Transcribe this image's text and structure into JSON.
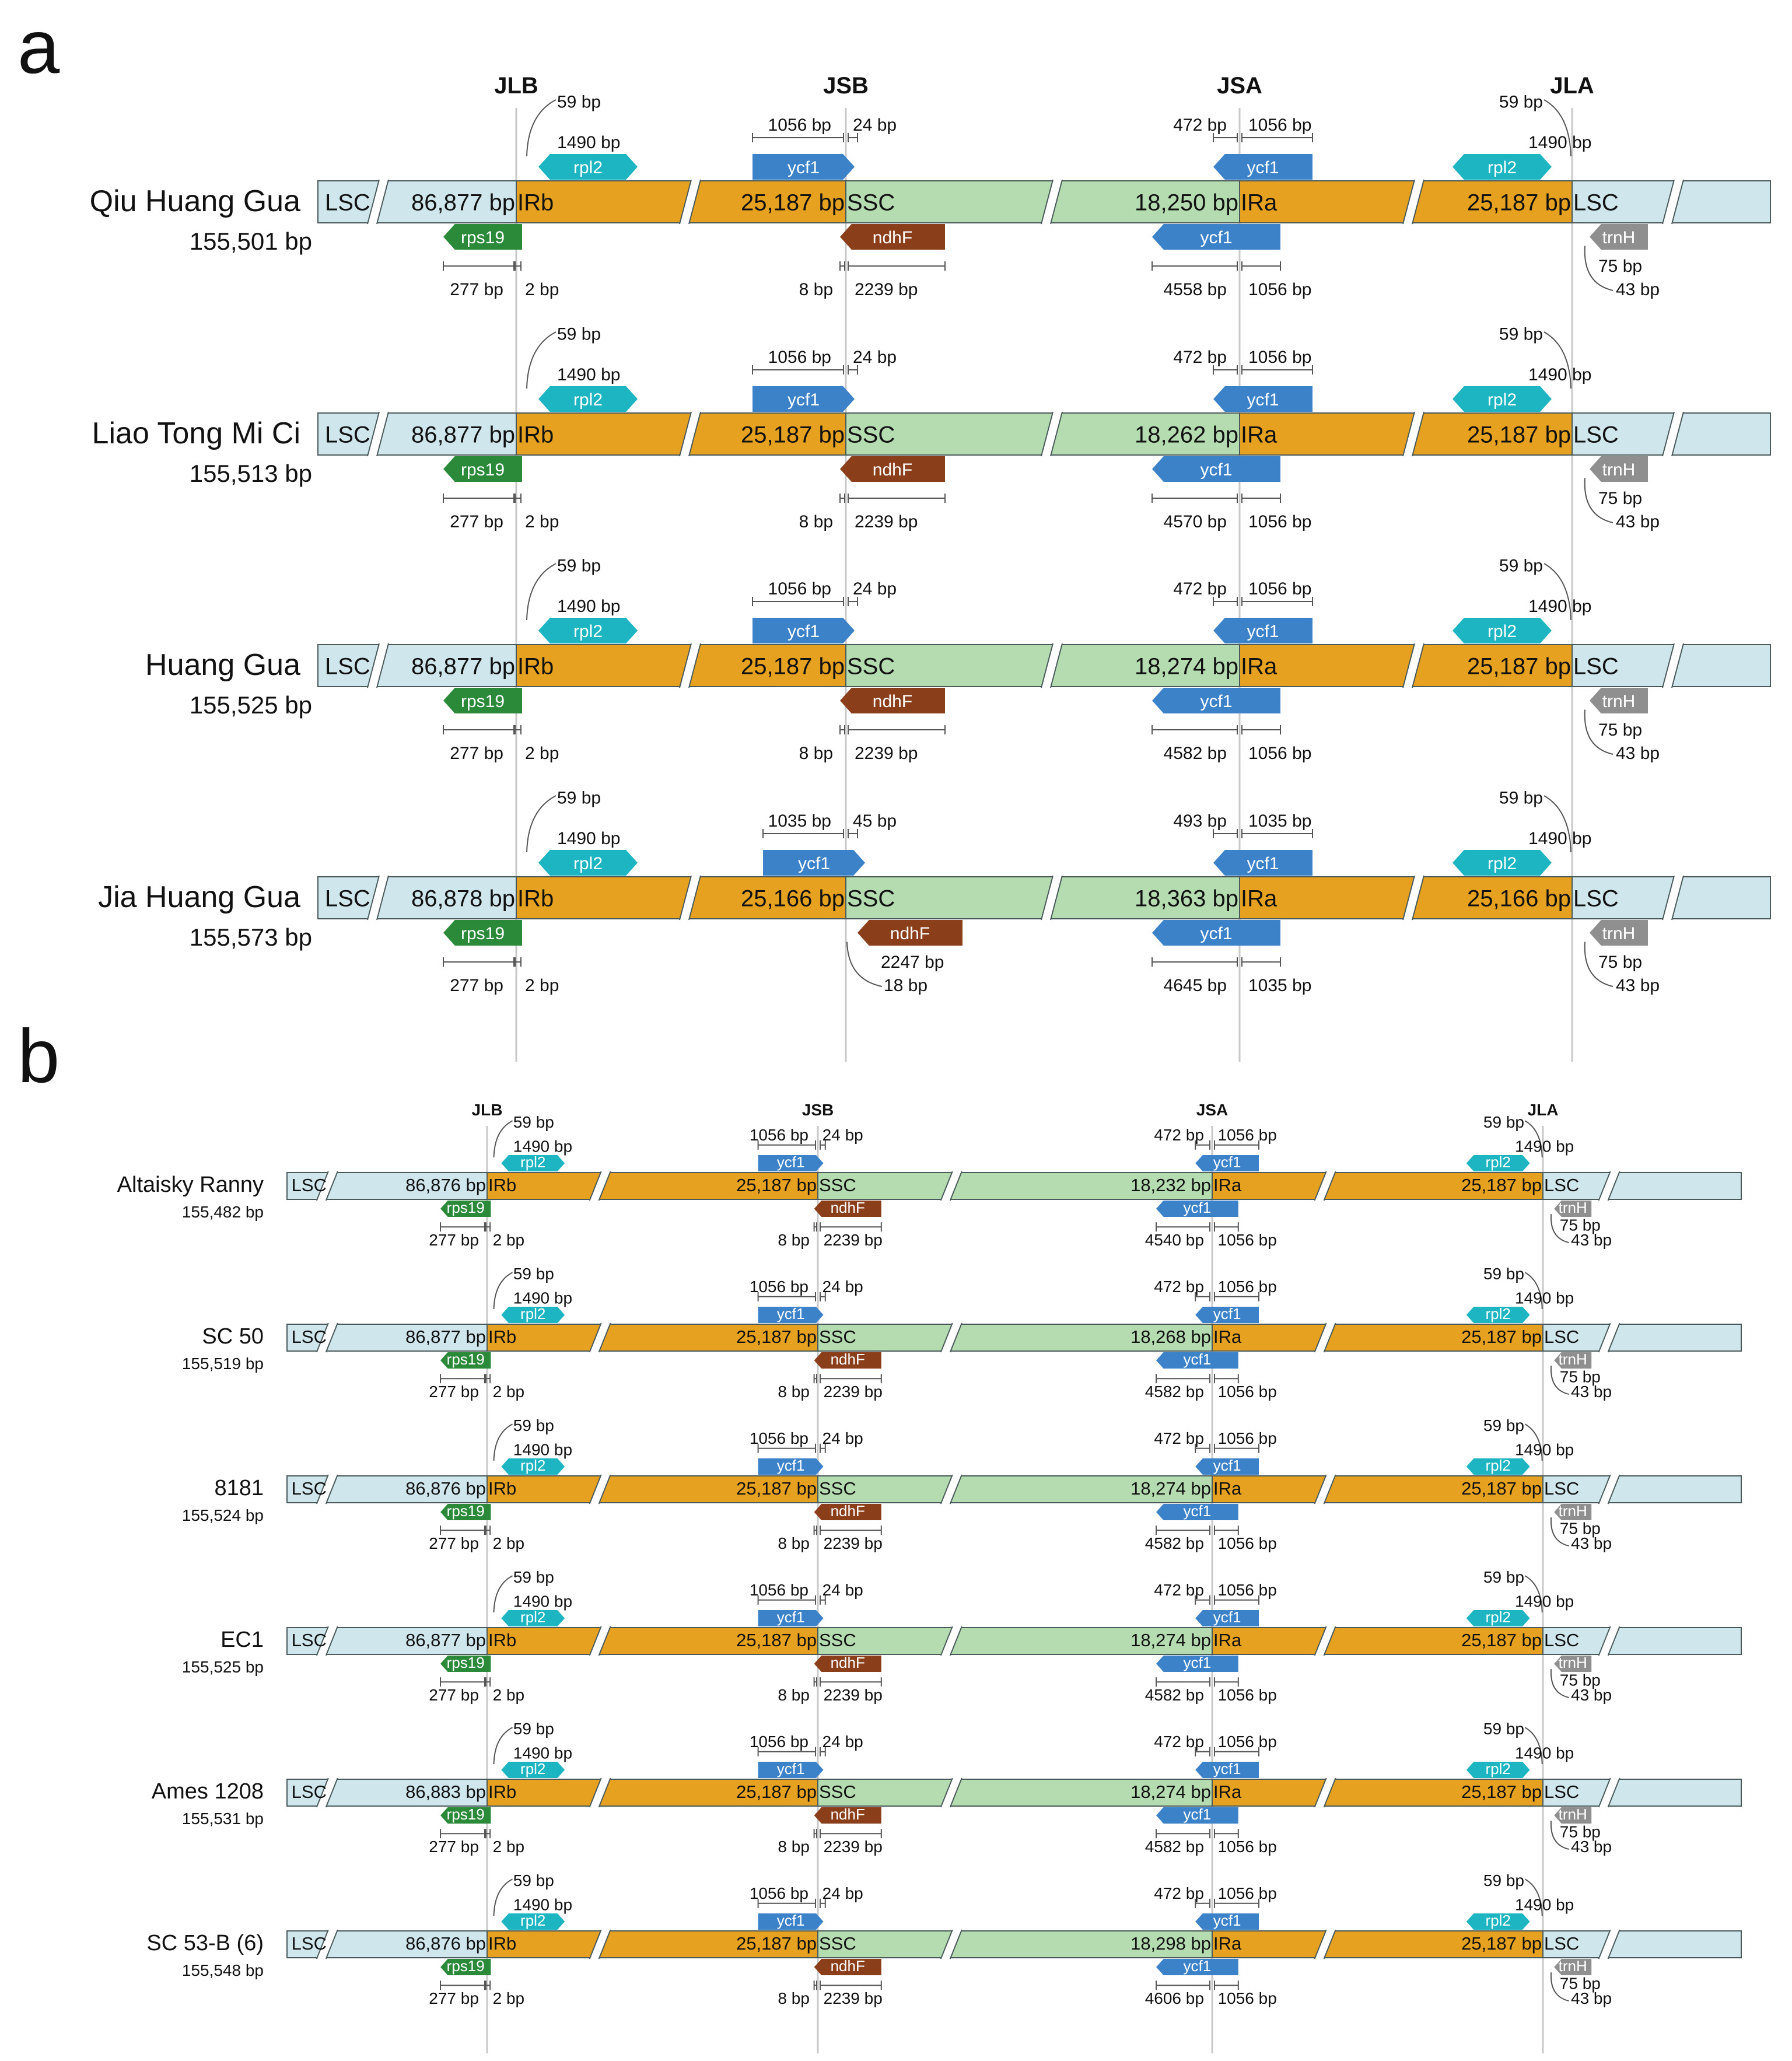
{
  "colors": {
    "lsc": "#cfe6ec",
    "ir": "#e5a11f",
    "ssc": "#b4dcb0",
    "rpl2": "#1db5c1",
    "ycf1": "#3b82c9",
    "rps19": "#2a8a3a",
    "ndhF": "#8a3e1a",
    "trnH": "#8f8f8f"
  },
  "junctions": [
    "JLB",
    "JSB",
    "JSA",
    "JLA"
  ],
  "region_labels": {
    "lsc": "LSC",
    "irb": "IRb",
    "ssc": "SSC",
    "ira": "IRa"
  },
  "genes": {
    "rpl2": "rpl2",
    "ycf1": "ycf1",
    "rps19": "rps19",
    "ndhF": "ndhF",
    "trnH": "trnH"
  },
  "panels": [
    {
      "letter": "a",
      "rows": [
        {
          "name": "Qiu Huang Gua",
          "total": "155,501 bp",
          "lsc": "86,877 bp",
          "ir": "25,187 bp",
          "ssc": "18,250 bp",
          "jlb_top": [
            "59 bp",
            "1490 bp"
          ],
          "jsb_top": [
            "1056 bp",
            "24 bp"
          ],
          "jsa_top": [
            "472 bp",
            "1056 bp"
          ],
          "jla_top": [
            "59 bp",
            "1490 bp"
          ],
          "jlb_bot": [
            "277 bp",
            "2 bp"
          ],
          "jsb_bot": [
            "8 bp",
            "2239 bp"
          ],
          "jsa_bot": [
            "4558 bp",
            "1056 bp"
          ],
          "jla_bot": [
            "75 bp",
            "43 bp"
          ]
        },
        {
          "name": "Liao Tong Mi Ci",
          "total": "155,513 bp",
          "lsc": "86,877 bp",
          "ir": "25,187 bp",
          "ssc": "18,262 bp",
          "jlb_top": [
            "59 bp",
            "1490 bp"
          ],
          "jsb_top": [
            "1056 bp",
            "24 bp"
          ],
          "jsa_top": [
            "472 bp",
            "1056 bp"
          ],
          "jla_top": [
            "59 bp",
            "1490 bp"
          ],
          "jlb_bot": [
            "277 bp",
            "2 bp"
          ],
          "jsb_bot": [
            "8 bp",
            "2239 bp"
          ],
          "jsa_bot": [
            "4570 bp",
            "1056 bp"
          ],
          "jla_bot": [
            "75 bp",
            "43 bp"
          ]
        },
        {
          "name": "Huang Gua",
          "total": "155,525 bp",
          "lsc": "86,877 bp",
          "ir": "25,187 bp",
          "ssc": "18,274 bp",
          "jlb_top": [
            "59 bp",
            "1490 bp"
          ],
          "jsb_top": [
            "1056 bp",
            "24 bp"
          ],
          "jsa_top": [
            "472 bp",
            "1056 bp"
          ],
          "jla_top": [
            "59 bp",
            "1490 bp"
          ],
          "jlb_bot": [
            "277 bp",
            "2 bp"
          ],
          "jsb_bot": [
            "8 bp",
            "2239 bp"
          ],
          "jsa_bot": [
            "4582 bp",
            "1056 bp"
          ],
          "jla_bot": [
            "75 bp",
            "43 bp"
          ]
        },
        {
          "name": "Jia Huang Gua",
          "total": "155,573 bp",
          "lsc": "86,878 bp",
          "ir": "25,166 bp",
          "ssc": "18,363 bp",
          "jlb_top": [
            "59 bp",
            "1490 bp"
          ],
          "jsb_top": [
            "1035 bp",
            "45 bp"
          ],
          "jsa_top": [
            "493 bp",
            "1035 bp"
          ],
          "jla_top": [
            "59 bp",
            "1490 bp"
          ],
          "jlb_bot": [
            "277 bp",
            "2 bp"
          ],
          "jsb_bot": [
            "2247 bp",
            "18 bp"
          ],
          "jsa_bot": [
            "4645 bp",
            "1035 bp"
          ],
          "jla_bot": [
            "75 bp",
            "43 bp"
          ]
        }
      ]
    },
    {
      "letter": "b",
      "rows": [
        {
          "name": "Altaisky Ranny",
          "total": "155,482 bp",
          "lsc": "86,876 bp",
          "ir": "25,187 bp",
          "ssc": "18,232 bp",
          "jlb_top": [
            "59 bp",
            "1490 bp"
          ],
          "jsb_top": [
            "1056 bp",
            "24 bp"
          ],
          "jsa_top": [
            "472 bp",
            "1056 bp"
          ],
          "jla_top": [
            "59 bp",
            "1490 bp"
          ],
          "jlb_bot": [
            "277 bp",
            "2 bp"
          ],
          "jsb_bot": [
            "8 bp",
            "2239 bp"
          ],
          "jsa_bot": [
            "4540 bp",
            "1056 bp"
          ],
          "jla_bot": [
            "75 bp",
            "43 bp"
          ]
        },
        {
          "name": "SC 50",
          "total": "155,519 bp",
          "lsc": "86,877 bp",
          "ir": "25,187 bp",
          "ssc": "18,268 bp",
          "jlb_top": [
            "59 bp",
            "1490 bp"
          ],
          "jsb_top": [
            "1056 bp",
            "24 bp"
          ],
          "jsa_top": [
            "472 bp",
            "1056 bp"
          ],
          "jla_top": [
            "59 bp",
            "1490 bp"
          ],
          "jlb_bot": [
            "277 bp",
            "2 bp"
          ],
          "jsb_bot": [
            "8 bp",
            "2239 bp"
          ],
          "jsa_bot": [
            "4582 bp",
            "1056 bp"
          ],
          "jla_bot": [
            "75 bp",
            "43 bp"
          ]
        },
        {
          "name": "8181",
          "total": "155,524 bp",
          "lsc": "86,876 bp",
          "ir": "25,187 bp",
          "ssc": "18,274 bp",
          "jlb_top": [
            "59 bp",
            "1490 bp"
          ],
          "jsb_top": [
            "1056 bp",
            "24 bp"
          ],
          "jsa_top": [
            "472 bp",
            "1056 bp"
          ],
          "jla_top": [
            "59 bp",
            "1490 bp"
          ],
          "jlb_bot": [
            "277 bp",
            "2 bp"
          ],
          "jsb_bot": [
            "8 bp",
            "2239 bp"
          ],
          "jsa_bot": [
            "4582 bp",
            "1056 bp"
          ],
          "jla_bot": [
            "75 bp",
            "43 bp"
          ]
        },
        {
          "name": "EC1",
          "total": "155,525 bp",
          "lsc": "86,877 bp",
          "ir": "25,187 bp",
          "ssc": "18,274 bp",
          "jlb_top": [
            "59 bp",
            "1490 bp"
          ],
          "jsb_top": [
            "1056 bp",
            "24 bp"
          ],
          "jsa_top": [
            "472 bp",
            "1056 bp"
          ],
          "jla_top": [
            "59 bp",
            "1490 bp"
          ],
          "jlb_bot": [
            "277 bp",
            "2 bp"
          ],
          "jsb_bot": [
            "8 bp",
            "2239 bp"
          ],
          "jsa_bot": [
            "4582 bp",
            "1056 bp"
          ],
          "jla_bot": [
            "75 bp",
            "43 bp"
          ]
        },
        {
          "name": "Ames 1208",
          "total": "155,531 bp",
          "lsc": "86,883 bp",
          "ir": "25,187 bp",
          "ssc": "18,274 bp",
          "jlb_top": [
            "59 bp",
            "1490 bp"
          ],
          "jsb_top": [
            "1056 bp",
            "24 bp"
          ],
          "jsa_top": [
            "472 bp",
            "1056 bp"
          ],
          "jla_top": [
            "59 bp",
            "1490 bp"
          ],
          "jlb_bot": [
            "277 bp",
            "2 bp"
          ],
          "jsb_bot": [
            "8 bp",
            "2239 bp"
          ],
          "jsa_bot": [
            "4582 bp",
            "1056 bp"
          ],
          "jla_bot": [
            "75 bp",
            "43 bp"
          ]
        },
        {
          "name": "SC 53-B (6)",
          "total": "155,548 bp",
          "lsc": "86,876 bp",
          "ir": "25,187 bp",
          "ssc": "18,298 bp",
          "jlb_top": [
            "59 bp",
            "1490 bp"
          ],
          "jsb_top": [
            "1056 bp",
            "24 bp"
          ],
          "jsa_top": [
            "472 bp",
            "1056 bp"
          ],
          "jla_top": [
            "59 bp",
            "1490 bp"
          ],
          "jlb_bot": [
            "277 bp",
            "2 bp"
          ],
          "jsb_bot": [
            "8 bp",
            "2239 bp"
          ],
          "jsa_bot": [
            "4606 bp",
            "1056 bp"
          ],
          "jla_bot": [
            "75 bp",
            "43 bp"
          ]
        }
      ]
    }
  ]
}
